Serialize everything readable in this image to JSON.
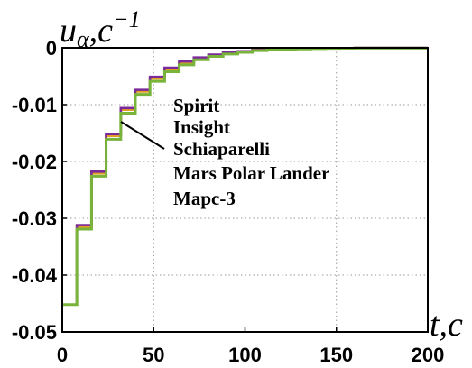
{
  "chart_data": {
    "type": "line",
    "title": "",
    "xlabel": "t,c",
    "ylabel": "u",
    "ylabel_sub": "α",
    "ylabel_rest": ",c",
    "ylabel_sup": "−1",
    "xlim": [
      0,
      200
    ],
    "ylim": [
      -0.05,
      0
    ],
    "xticks": [
      0,
      50,
      100,
      150,
      200
    ],
    "yticks": [
      0,
      -0.01,
      -0.02,
      -0.03,
      -0.04,
      -0.05
    ],
    "xtick_labels": [
      "0",
      "50",
      "100",
      "150",
      "200"
    ],
    "ytick_labels": [
      "0",
      "-0.01",
      "-0.02",
      "-0.03",
      "-0.04",
      "-0.05"
    ],
    "grid": true,
    "legend_placement": "center",
    "series": [
      {
        "name": "Spirit",
        "color": "#2a2ad0",
        "step": "post",
        "x": [
          0,
          8,
          16,
          24,
          32,
          40,
          48,
          56,
          64,
          72,
          80,
          88,
          96,
          104,
          112,
          120,
          128,
          136,
          144,
          152,
          160,
          200
        ],
        "y": [
          -0.0452,
          -0.0313,
          -0.0219,
          -0.0153,
          -0.0107,
          -0.0075,
          -0.0052,
          -0.0036,
          -0.0025,
          -0.0018,
          -0.0013,
          -0.0009,
          -0.0006,
          -0.0004,
          -0.0003,
          -0.0002,
          -0.00015,
          -0.0001,
          -7e-05,
          -5e-05,
          -3e-05,
          -3e-05
        ]
      },
      {
        "name": "Insight",
        "color": "#d03030",
        "step": "post",
        "x": [
          0,
          8,
          16,
          24,
          32,
          40,
          48,
          56,
          64,
          72,
          80,
          88,
          96,
          104,
          112,
          120,
          128,
          136,
          144,
          152,
          160,
          200
        ],
        "y": [
          -0.0452,
          -0.0314,
          -0.022,
          -0.0154,
          -0.0108,
          -0.0076,
          -0.0053,
          -0.0037,
          -0.0026,
          -0.0018,
          -0.0013,
          -0.0009,
          -0.0006,
          -0.0004,
          -0.0003,
          -0.0002,
          -0.00015,
          -0.0001,
          -7e-05,
          -5e-05,
          -3e-05,
          -3e-05
        ]
      },
      {
        "name": "Schiaparelli",
        "color": "#e0a020",
        "step": "post",
        "x": [
          0,
          8,
          16,
          24,
          32,
          40,
          48,
          56,
          64,
          72,
          80,
          88,
          96,
          104,
          112,
          120,
          128,
          136,
          144,
          152,
          160,
          200
        ],
        "y": [
          -0.0452,
          -0.0315,
          -0.0221,
          -0.0155,
          -0.0109,
          -0.0077,
          -0.0054,
          -0.0038,
          -0.0026,
          -0.0018,
          -0.0013,
          -0.0009,
          -0.0006,
          -0.0004,
          -0.0003,
          -0.0002,
          -0.00015,
          -0.0001,
          -7e-05,
          -5e-05,
          -3e-05,
          -3e-05
        ]
      },
      {
        "name": "Mars Polar Lander",
        "color": "#7b2a9a",
        "step": "post",
        "x": [
          0,
          8,
          16,
          24,
          32,
          40,
          48,
          56,
          64,
          72,
          80,
          88,
          96,
          104,
          112,
          120,
          128,
          136,
          144,
          152,
          160,
          200
        ],
        "y": [
          -0.0452,
          -0.0312,
          -0.0218,
          -0.0152,
          -0.0106,
          -0.0074,
          -0.0051,
          -0.0035,
          -0.0024,
          -0.0017,
          -0.0012,
          -0.0008,
          -0.0006,
          -0.0004,
          -0.0003,
          -0.0002,
          -0.00015,
          -0.0001,
          -7e-05,
          -5e-05,
          -3e-05,
          -3e-05
        ]
      },
      {
        "name": "Марс-3",
        "color": "#78b33a",
        "step": "post",
        "x": [
          0,
          8,
          16,
          24,
          32,
          40,
          48,
          56,
          64,
          72,
          80,
          88,
          96,
          104,
          112,
          120,
          128,
          136,
          144,
          152,
          160,
          200
        ],
        "y": [
          -0.0452,
          -0.0319,
          -0.0226,
          -0.0161,
          -0.0115,
          -0.0082,
          -0.0059,
          -0.0042,
          -0.003,
          -0.0021,
          -0.0015,
          -0.0011,
          -0.0008,
          -0.0005,
          -0.0004,
          -0.0003,
          -0.0002,
          -0.00014,
          -0.0001,
          -7e-05,
          -5e-05,
          -5e-05
        ]
      }
    ]
  }
}
